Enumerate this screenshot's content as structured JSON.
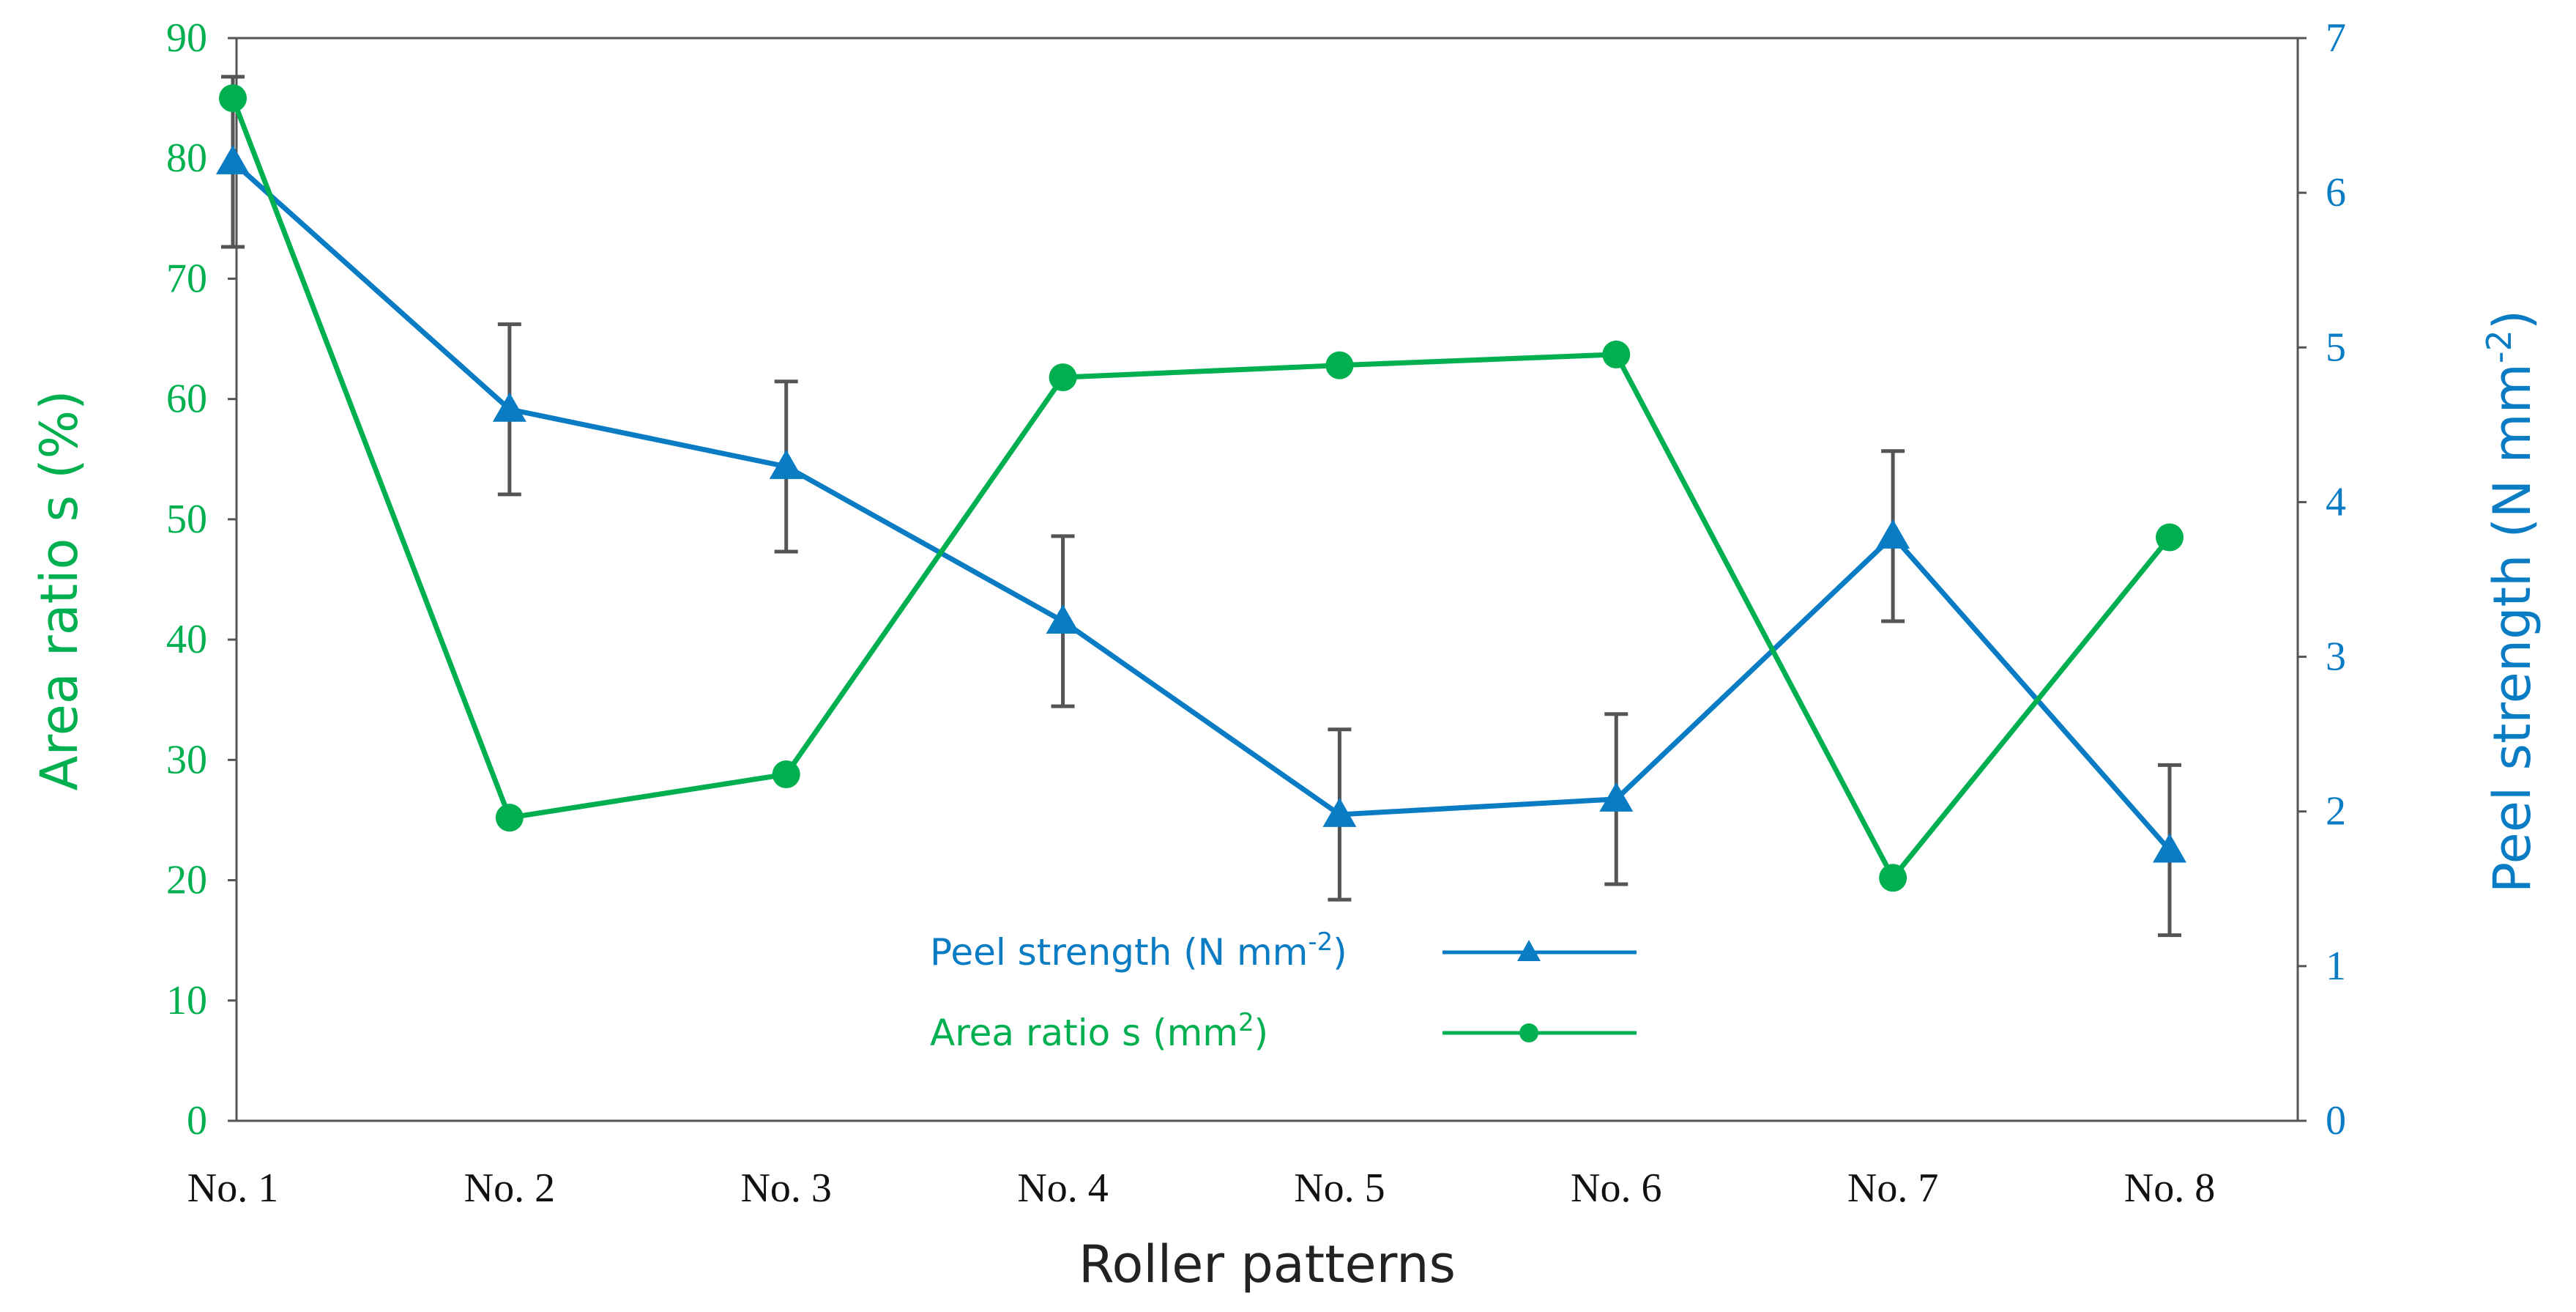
{
  "chart_data": {
    "type": "line",
    "title": "",
    "xlabel": "Roller patterns",
    "categories": [
      "No. 1",
      "No. 2",
      "No. 3",
      "No. 4",
      "No. 5",
      "No. 6",
      "No. 7",
      "No. 8"
    ],
    "y_left": {
      "label": "Area ratio s (%)",
      "ylim": [
        0,
        90
      ],
      "ticks": [
        0,
        10,
        20,
        30,
        40,
        50,
        60,
        70,
        80,
        90
      ],
      "color": "#00b050"
    },
    "y_right": {
      "label_main": "Peel strength (N mm",
      "label_sup": "-2",
      "label_end": ")",
      "ylim": [
        0,
        7
      ],
      "ticks": [
        0,
        1,
        2,
        3,
        4,
        5,
        6,
        7
      ],
      "color": "#0a7cc4"
    },
    "series": [
      {
        "name": "Peel strength (N mm-2)",
        "legend_main": "Peel strength (N mm",
        "legend_sup": "-2",
        "legend_end": ")",
        "axis": "right",
        "marker": "triangle",
        "color": "#0a7cc4",
        "values": [
          6.2,
          4.6,
          4.23,
          3.23,
          1.98,
          2.08,
          3.78,
          1.75
        ],
        "errors": [
          0.55,
          0.55,
          0.55,
          0.55,
          0.55,
          0.55,
          0.55,
          0.55
        ]
      },
      {
        "name": "Area ratio s (mm2)",
        "legend_main": "Area ratio s (mm",
        "legend_sup": "2",
        "legend_end": ")",
        "axis": "left",
        "marker": "circle",
        "color": "#00b050",
        "values": [
          85,
          25.2,
          28.8,
          61.8,
          62.8,
          63.7,
          20.2,
          48.5
        ]
      }
    ],
    "legend_position": "bottom-center",
    "error_bar_color": "#555555"
  }
}
